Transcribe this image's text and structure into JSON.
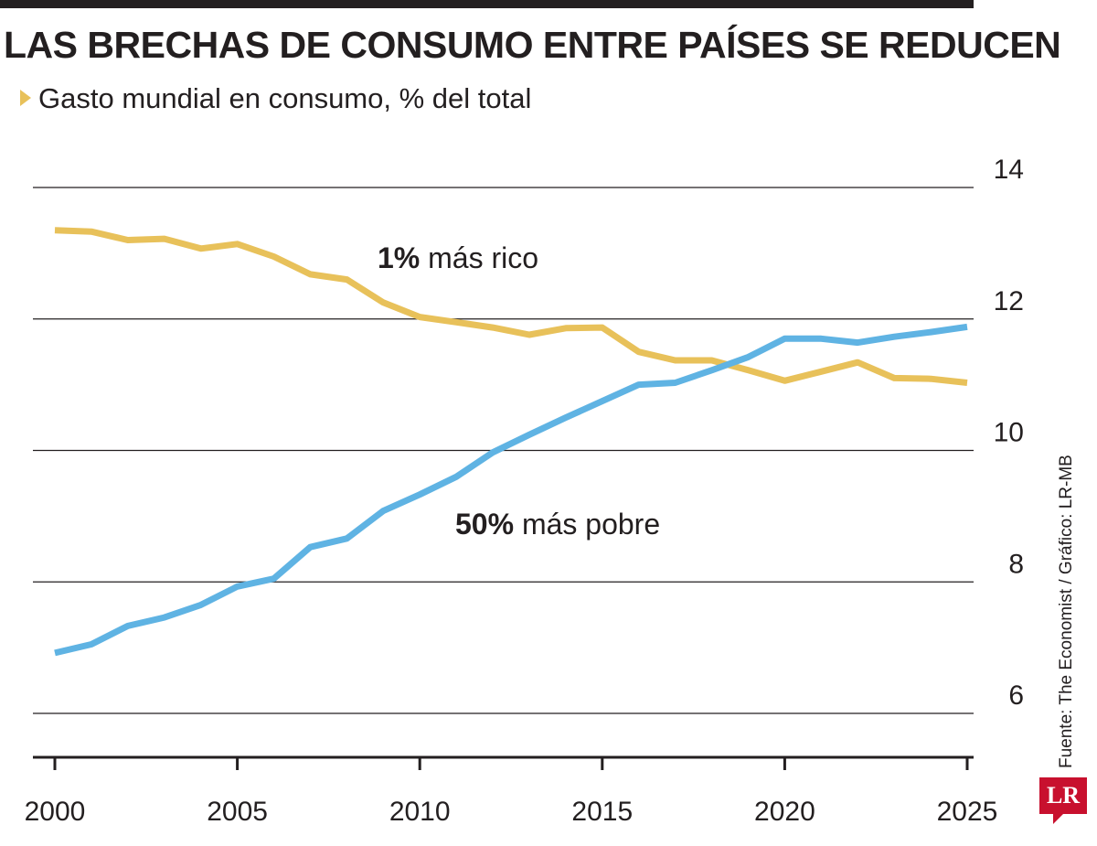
{
  "title": "LAS BRECHAS DE CONSUMO ENTRE PAÍSES SE REDUCEN",
  "subtitle": "Gasto mundial en consumo, % del total",
  "source": "Fuente: The Economist  / Gráfico: LR-MB",
  "logo_text": "LR",
  "chart_data": {
    "type": "line",
    "title": "LAS BRECHAS DE CONSUMO ENTRE PAÍSES SE REDUCEN",
    "ylabel": "Gasto mundial en consumo, % del total",
    "xlabel": "",
    "xlim": [
      2000,
      2025
    ],
    "ylim": [
      5.3,
      14
    ],
    "yticks": [
      6,
      8,
      10,
      12,
      14
    ],
    "xticks": [
      2000,
      2005,
      2010,
      2015,
      2020,
      2025
    ],
    "grid": true,
    "x": [
      2000,
      2001,
      2002,
      2003,
      2004,
      2005,
      2006,
      2007,
      2008,
      2009,
      2010,
      2011,
      2012,
      2013,
      2014,
      2015,
      2016,
      2017,
      2018,
      2019,
      2020,
      2021,
      2022,
      2023,
      2024,
      2025
    ],
    "series": [
      {
        "name": "1% más rico",
        "label_bold": "1%",
        "label_rest": " más rico",
        "color": "#e8c15a",
        "values": [
          13.35,
          13.33,
          13.2,
          13.22,
          13.07,
          13.14,
          12.95,
          12.68,
          12.6,
          12.25,
          12.03,
          11.95,
          11.87,
          11.76,
          11.86,
          11.87,
          11.5,
          11.37,
          11.37,
          11.22,
          11.06,
          11.2,
          11.34,
          11.1,
          11.09,
          11.03
        ]
      },
      {
        "name": "50% más pobre",
        "label_bold": "50%",
        "label_rest": " más pobre",
        "color": "#5fb3e3",
        "values": [
          6.92,
          7.05,
          7.33,
          7.46,
          7.65,
          7.93,
          8.05,
          8.53,
          8.66,
          9.08,
          9.33,
          9.6,
          9.97,
          10.24,
          10.5,
          10.75,
          11.0,
          11.03,
          11.22,
          11.42,
          11.7,
          11.7,
          11.64,
          11.73,
          11.8,
          11.88
        ]
      }
    ]
  }
}
